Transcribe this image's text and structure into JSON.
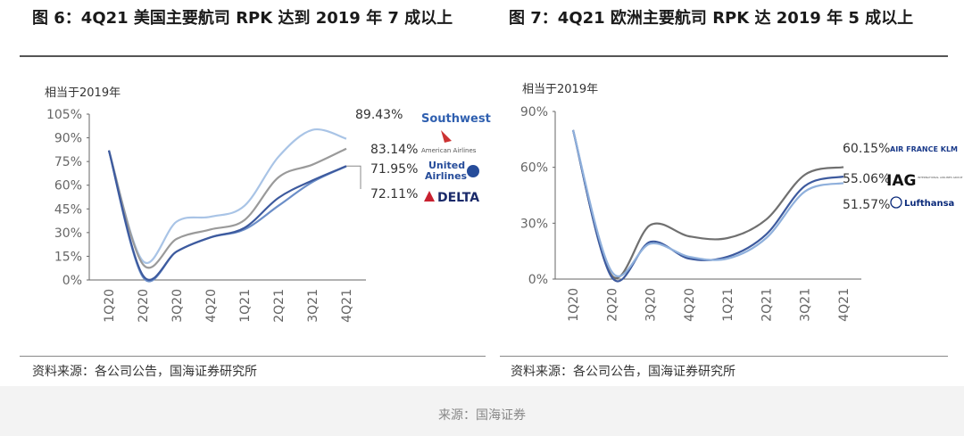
{
  "titles": {
    "left": "图 6：4Q21 美国主要航司 RPK 达到 2019 年 7 成以上",
    "right": "图 7：4Q21 欧洲主要航司 RPK 达 2019 年 5 成以上"
  },
  "sources": {
    "left": "资料来源：各公司公告，国海证券研究所",
    "right": "资料来源：各公司公告，国海证券研究所"
  },
  "footer": "来源：国海证券",
  "chart_data": [
    {
      "type": "line",
      "title": "4Q21 美国主要航司 RPK 达到 2019 年 7 成以上",
      "ylabel": "相当于2019年",
      "categories": [
        "1Q20",
        "2Q20",
        "3Q20",
        "4Q20",
        "1Q21",
        "2Q21",
        "3Q21",
        "4Q21"
      ],
      "yticks": [
        "0%",
        "15%",
        "30%",
        "45%",
        "60%",
        "75%",
        "90%",
        "105%"
      ],
      "ylim": [
        0,
        105
      ],
      "series": [
        {
          "name": "Southwest",
          "color": "#a9c4e6",
          "values": [
            82,
            12,
            37,
            40,
            47,
            78,
            95,
            89.43
          ],
          "end_label": "89.43%"
        },
        {
          "name": "American Airlines",
          "color": "#9a9a9a",
          "values": [
            82,
            10,
            26,
            32,
            38,
            65,
            73,
            83.14
          ],
          "end_label": "83.14%"
        },
        {
          "name": "United Airlines",
          "color": "#6b8ec8",
          "values": [
            82,
            2,
            18,
            27,
            32,
            47,
            62,
            71.95
          ],
          "end_label": "71.95%"
        },
        {
          "name": "Delta",
          "color": "#3d5a9e",
          "values": [
            82,
            3,
            18,
            27,
            33,
            52,
            63,
            72.11
          ],
          "end_label": "72.11%"
        }
      ],
      "logos": {
        "southwest": "Southwest",
        "american": "American Airlines",
        "united_1": "United",
        "united_2": "Airlines",
        "delta": "DELTA"
      }
    },
    {
      "type": "line",
      "title": "4Q21 欧洲主要航司 RPK 达 2019 年 5 成以上",
      "ylabel": "相当于2019年",
      "categories": [
        "1Q20",
        "2Q20",
        "3Q20",
        "4Q20",
        "1Q21",
        "2Q21",
        "3Q21",
        "4Q21"
      ],
      "yticks": [
        "0%",
        "30%",
        "60%",
        "90%"
      ],
      "ylim": [
        0,
        90
      ],
      "series": [
        {
          "name": "Air France-KLM",
          "color": "#707070",
          "values": [
            80,
            2,
            29,
            23,
            22,
            32,
            56,
            60.15
          ],
          "end_label": "60.15%"
        },
        {
          "name": "IAG",
          "color": "#3d5a9e",
          "values": [
            80,
            1,
            20,
            11,
            12,
            24,
            50,
            55.06
          ],
          "end_label": "55.06%"
        },
        {
          "name": "Lufthansa",
          "color": "#8fb0dc",
          "values": [
            80,
            4,
            19,
            12,
            11,
            22,
            47,
            51.57
          ],
          "end_label": "51.57%"
        }
      ],
      "logos": {
        "airfrance": "AIR FRANCE KLM",
        "iag": "IAG",
        "iag_sub": "INTERNATIONAL AIRLINES GROUP",
        "lufthansa": "Lufthansa"
      }
    }
  ]
}
